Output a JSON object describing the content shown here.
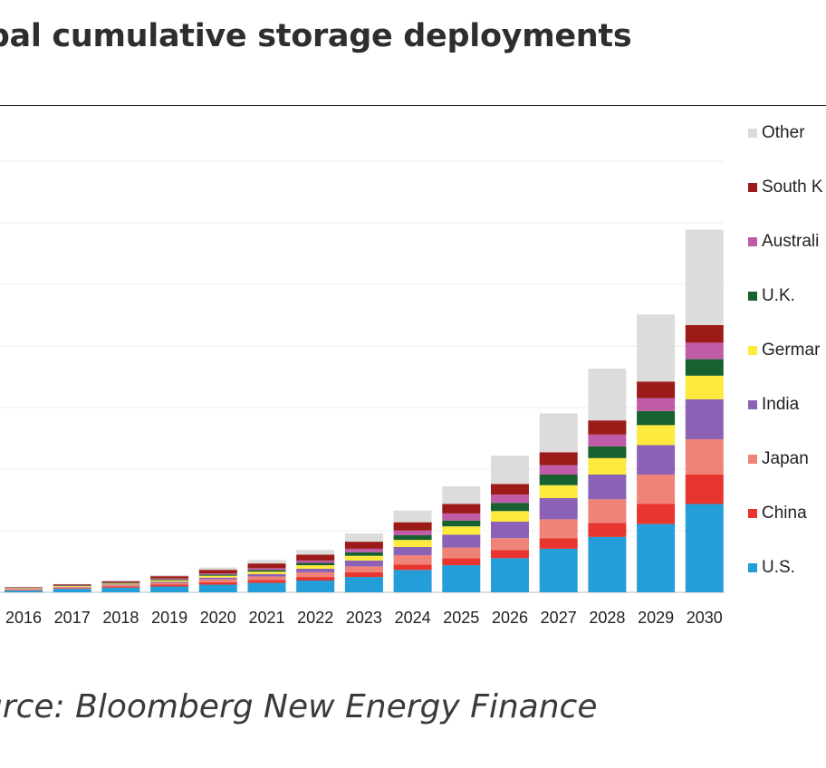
{
  "page": {
    "title": "obal cumulative storage deployments",
    "source": "urce: Bloomberg New Energy Finance"
  },
  "chart_data": {
    "type": "bar",
    "stacked": true,
    "grid": true,
    "legend_position": "right",
    "categories": [
      "2016",
      "2017",
      "2018",
      "2019",
      "2020",
      "2021",
      "2022",
      "2023",
      "2024",
      "2025",
      "2026",
      "2027",
      "2028",
      "2029",
      "2030"
    ],
    "ylim": [
      0,
      300
    ],
    "series": [
      {
        "name": "U.S.",
        "color": "#239ed8",
        "values": [
          1.5,
          3,
          4,
          5,
          6.5,
          8,
          10,
          13,
          19,
          23,
          29,
          37,
          47,
          58,
          75
        ]
      },
      {
        "name": "China",
        "color": "#e8352f",
        "values": [
          0.4,
          0.6,
          1,
          1.5,
          2,
          2.5,
          3,
          4,
          4.5,
          6,
          7,
          9,
          12,
          17,
          25
        ]
      },
      {
        "name": "Japan",
        "color": "#f08377",
        "values": [
          0.6,
          0.8,
          1,
          1.5,
          2.5,
          3,
          4,
          5,
          8,
          9,
          10,
          16,
          20,
          25,
          30
        ]
      },
      {
        "name": "India",
        "color": "#8b62b5",
        "values": [
          0.3,
          0.4,
          0.6,
          1,
          1.5,
          2,
          3,
          5,
          7,
          11,
          14,
          18,
          21,
          25,
          34
        ]
      },
      {
        "name": "Germany",
        "color": "#fdea3c",
        "values": [
          0.5,
          0.6,
          0.8,
          1.2,
          1.6,
          2,
          3,
          4,
          6,
          7,
          9,
          11,
          14,
          17,
          20
        ]
      },
      {
        "name": "U.K.",
        "color": "#176130",
        "values": [
          0.3,
          0.4,
          0.6,
          0.8,
          1,
          1.5,
          2,
          3,
          4,
          5,
          7,
          9,
          10,
          12,
          14
        ]
      },
      {
        "name": "Australia",
        "color": "#c05ca7",
        "values": [
          0.2,
          0.3,
          0.4,
          0.7,
          1,
          1.5,
          2,
          3,
          4,
          6,
          7,
          8,
          10,
          11,
          14
        ]
      },
      {
        "name": "South Korea",
        "color": "#9c1a17",
        "values": [
          0.5,
          0.7,
          1,
          2,
          3,
          4,
          5,
          6,
          7,
          8,
          9,
          11,
          12,
          14,
          15
        ]
      },
      {
        "name": "Other",
        "color": "#dcdcdc",
        "values": [
          0.2,
          0.3,
          0.6,
          1,
          2,
          3,
          4,
          7,
          10,
          15,
          24,
          33,
          44,
          57,
          81
        ]
      }
    ],
    "legend_labels": [
      "Other",
      "South K",
      "Australi",
      "U.K.",
      "Germar",
      "India",
      "Japan",
      "China",
      "U.S."
    ]
  }
}
